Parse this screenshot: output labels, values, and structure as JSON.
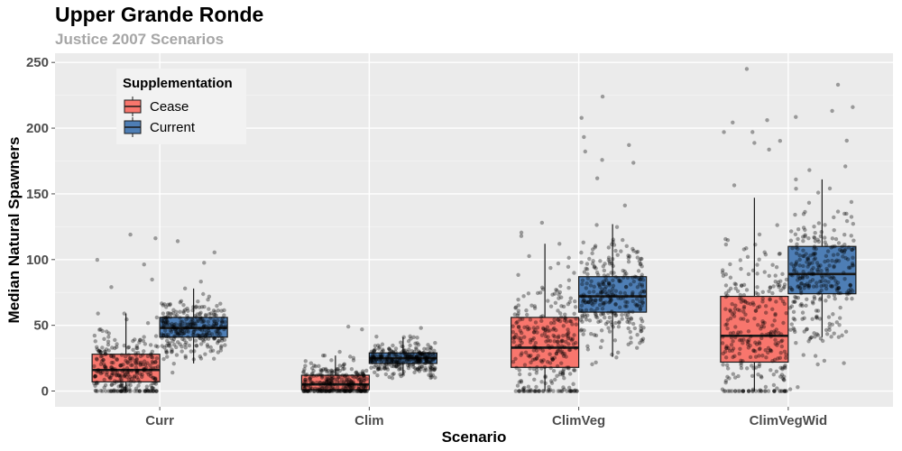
{
  "chart_data": {
    "type": "box",
    "title": "Upper Grande Ronde",
    "subtitle": "Justice 2007 Scenarios",
    "xlabel": "Scenario",
    "ylabel": "Median Natural Spawners",
    "categories": [
      "Curr",
      "Clim",
      "ClimVeg",
      "ClimVegWid"
    ],
    "ylim": [
      -12,
      257
    ],
    "yticks": [
      0,
      50,
      100,
      150,
      200,
      250
    ],
    "grid": true,
    "legend": {
      "title": "Supplementation",
      "position": "top-left"
    },
    "series": [
      {
        "name": "Cease",
        "color": "#f8766d",
        "boxes": [
          {
            "category": "Curr",
            "min": 0,
            "q1": 7,
            "median": 16,
            "q3": 28,
            "max": 59,
            "jitter_max": 119
          },
          {
            "category": "Clim",
            "min": 0,
            "q1": 1,
            "median": 5,
            "q3": 12,
            "max": 27,
            "jitter_max": 49
          },
          {
            "category": "ClimVeg",
            "min": 0,
            "q1": 18,
            "median": 33,
            "q3": 56,
            "max": 112,
            "jitter_max": 128
          },
          {
            "category": "ClimVegWid",
            "min": 0,
            "q1": 22,
            "median": 42,
            "q3": 72,
            "max": 147,
            "jitter_max": 245
          }
        ]
      },
      {
        "name": "Current",
        "color": "#4e7eb5",
        "boxes": [
          {
            "category": "Curr",
            "min": 21,
            "q1": 41,
            "median": 48,
            "q3": 56,
            "max": 78,
            "jitter_max": 114
          },
          {
            "category": "Clim",
            "min": 12,
            "q1": 21,
            "median": 25,
            "q3": 29,
            "max": 41,
            "jitter_max": 48
          },
          {
            "category": "ClimVeg",
            "min": 26,
            "q1": 60,
            "median": 72,
            "q3": 87,
            "max": 127,
            "jitter_max": 224
          },
          {
            "category": "ClimVegWid",
            "min": 41,
            "q1": 74,
            "median": 89,
            "q3": 110,
            "max": 161,
            "jitter_max": 233
          }
        ]
      }
    ]
  }
}
